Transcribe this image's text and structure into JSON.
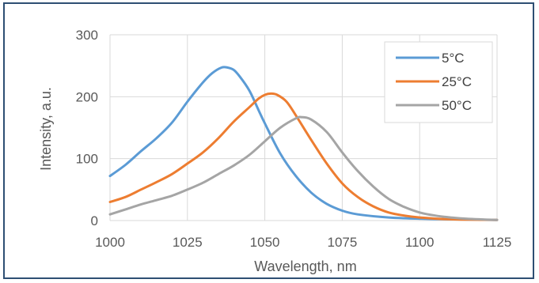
{
  "chart_data": {
    "type": "line",
    "title": "",
    "xlabel": "Wavelength, nm",
    "ylabel": "Intensity, a.u.",
    "xlim": [
      1000,
      1125
    ],
    "ylim": [
      0,
      300
    ],
    "xticks": [
      1000,
      1025,
      1050,
      1075,
      1100,
      1125
    ],
    "yticks": [
      0,
      100,
      200,
      300
    ],
    "grid": true,
    "legend_position": "top-right",
    "series": [
      {
        "name": "5°C",
        "color": "#5b9bd5",
        "points": [
          [
            1000,
            72
          ],
          [
            1005,
            90
          ],
          [
            1010,
            112
          ],
          [
            1015,
            133
          ],
          [
            1020,
            158
          ],
          [
            1025,
            192
          ],
          [
            1030,
            223
          ],
          [
            1033,
            238
          ],
          [
            1036,
            247
          ],
          [
            1038,
            247
          ],
          [
            1040,
            243
          ],
          [
            1042,
            232
          ],
          [
            1045,
            210
          ],
          [
            1048,
            178
          ],
          [
            1050,
            157
          ],
          [
            1055,
            108
          ],
          [
            1060,
            72
          ],
          [
            1065,
            45
          ],
          [
            1070,
            27
          ],
          [
            1075,
            16
          ],
          [
            1080,
            10
          ],
          [
            1090,
            5
          ],
          [
            1100,
            3
          ],
          [
            1110,
            2
          ],
          [
            1125,
            1
          ]
        ]
      },
      {
        "name": "25°C",
        "color": "#ed7d31",
        "points": [
          [
            1000,
            30
          ],
          [
            1005,
            38
          ],
          [
            1010,
            50
          ],
          [
            1015,
            62
          ],
          [
            1020,
            75
          ],
          [
            1025,
            92
          ],
          [
            1030,
            110
          ],
          [
            1035,
            133
          ],
          [
            1040,
            160
          ],
          [
            1045,
            183
          ],
          [
            1048,
            197
          ],
          [
            1050,
            203
          ],
          [
            1052,
            205
          ],
          [
            1054,
            203
          ],
          [
            1057,
            192
          ],
          [
            1060,
            170
          ],
          [
            1065,
            130
          ],
          [
            1070,
            92
          ],
          [
            1075,
            60
          ],
          [
            1080,
            38
          ],
          [
            1085,
            23
          ],
          [
            1090,
            13
          ],
          [
            1095,
            8
          ],
          [
            1100,
            5
          ],
          [
            1110,
            2
          ],
          [
            1125,
            1
          ]
        ]
      },
      {
        "name": "50°C",
        "color": "#a5a5a5",
        "points": [
          [
            1000,
            10
          ],
          [
            1005,
            18
          ],
          [
            1010,
            26
          ],
          [
            1015,
            33
          ],
          [
            1020,
            40
          ],
          [
            1025,
            50
          ],
          [
            1030,
            61
          ],
          [
            1035,
            75
          ],
          [
            1040,
            89
          ],
          [
            1045,
            106
          ],
          [
            1050,
            128
          ],
          [
            1055,
            150
          ],
          [
            1060,
            165
          ],
          [
            1062,
            167
          ],
          [
            1065,
            163
          ],
          [
            1070,
            143
          ],
          [
            1075,
            110
          ],
          [
            1080,
            80
          ],
          [
            1085,
            55
          ],
          [
            1090,
            35
          ],
          [
            1095,
            22
          ],
          [
            1100,
            13
          ],
          [
            1105,
            8
          ],
          [
            1110,
            5
          ],
          [
            1115,
            3
          ],
          [
            1125,
            1
          ]
        ]
      }
    ]
  },
  "colors": {
    "frame_border": "#2e4f73",
    "gridline": "#d9d9d9",
    "text": "#595959"
  }
}
